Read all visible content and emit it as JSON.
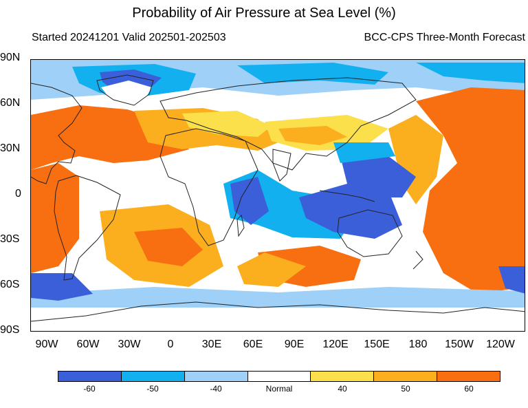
{
  "title": "Probability of Air Pressure at Sea Level (%)",
  "subtitle_left": "Started 20241201  Valid 202501-202503",
  "subtitle_right": "BCC-CPS Three-Month Forecast",
  "lat_labels": [
    "90N",
    "60N",
    "30N",
    "0",
    "30S",
    "60S",
    "90S"
  ],
  "lon_labels": [
    "90W",
    "60W",
    "30W",
    "0",
    "30E",
    "60E",
    "90E",
    "120E",
    "150E",
    "180",
    "150W",
    "120W"
  ],
  "legend": {
    "colors": [
      "#3b5fd9",
      "#12b0ef",
      "#9fd0f7",
      "#ffffff",
      "#fbe04b",
      "#fbaf1e",
      "#f86f12"
    ],
    "labels": [
      "-60",
      "-50",
      "-40",
      "Normal",
      "40",
      "50",
      "60"
    ]
  }
}
